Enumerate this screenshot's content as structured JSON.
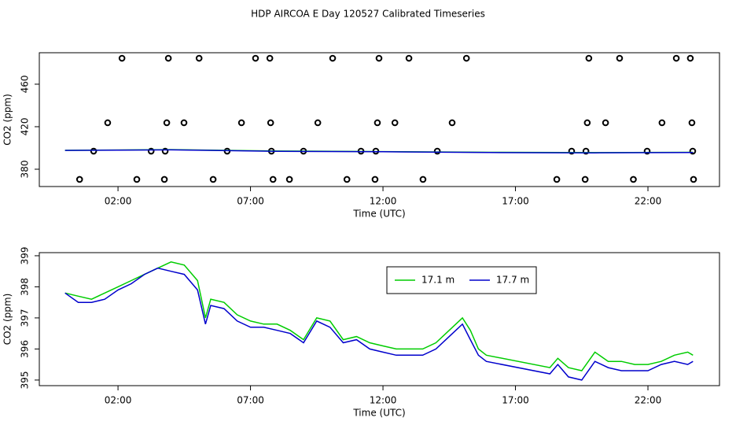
{
  "title": "HDP AIRCOA E  Day 120527  Calibrated Timeseries",
  "chart_data": [
    {
      "type": "scatter",
      "xlabel": "Time (UTC)",
      "ylabel": "CO2 (ppm)",
      "xlim": [
        -0.97,
        24.7
      ],
      "ylim": [
        363.7,
        489.6
      ],
      "xticks": [
        {
          "value": 2,
          "label": "02:00"
        },
        {
          "value": 7,
          "label": "07:00"
        },
        {
          "value": 12,
          "label": "12:00"
        },
        {
          "value": 17,
          "label": "17:00"
        },
        {
          "value": 22,
          "label": "22:00"
        }
      ],
      "yticks": [
        380,
        420,
        460
      ],
      "series": [
        {
          "color": "#000000",
          "mode": "points",
          "x": [
            2.15,
            3.9,
            5.06,
            7.19,
            7.73,
            10.1,
            11.85,
            12.98,
            15.15,
            19.77,
            20.93,
            23.07,
            23.6,
            1.61,
            3.84,
            4.49,
            6.66,
            7.76,
            9.54,
            11.79,
            12.45,
            14.61,
            19.71,
            20.4,
            22.53,
            23.66,
            1.08,
            3.25,
            3.78,
            6.12,
            7.79,
            9.0,
            11.17,
            11.73,
            14.05,
            19.12,
            19.66,
            21.97,
            23.69,
            0.55,
            2.71,
            3.75,
            5.59,
            7.85,
            8.47,
            10.64,
            11.7,
            13.51,
            18.56,
            19.63,
            21.45,
            23.72
          ],
          "values": [
            484.4,
            484.4,
            484.4,
            484.4,
            484.4,
            484.4,
            484.4,
            484.4,
            484.4,
            484.4,
            484.4,
            484.4,
            484.4,
            423.7,
            423.7,
            423.7,
            423.7,
            423.7,
            423.7,
            423.7,
            423.7,
            423.7,
            423.7,
            423.7,
            423.7,
            423.7,
            397,
            397,
            397,
            397,
            397,
            397,
            397,
            397,
            397,
            397,
            397,
            397,
            397,
            370.4,
            370.4,
            370.4,
            370.4,
            370.4,
            370.4,
            370.4,
            370.4,
            370.4,
            370.4,
            370.4,
            370.4,
            370.4
          ]
        },
        {
          "color": "#00cc00",
          "mode": "line",
          "x": [
            0,
            4,
            8,
            12,
            16,
            20,
            23.7
          ],
          "values": [
            397.8,
            398.4,
            397.1,
            396.6,
            395.9,
            395.6,
            395.9
          ]
        },
        {
          "color": "#0000cc",
          "mode": "line",
          "x": [
            0,
            4,
            8,
            12,
            16,
            20,
            23.7
          ],
          "values": [
            397.7,
            398.2,
            396.9,
            396.4,
            395.7,
            395.4,
            395.7
          ]
        }
      ]
    },
    {
      "type": "line",
      "xlabel": "Time (UTC)",
      "ylabel": "CO2 (ppm)",
      "legend": "top",
      "xlim": [
        -0.97,
        24.7
      ],
      "ylim": [
        394.82,
        399.1
      ],
      "xticks": [
        {
          "value": 2,
          "label": "02:00"
        },
        {
          "value": 7,
          "label": "07:00"
        },
        {
          "value": 12,
          "label": "12:00"
        },
        {
          "value": 17,
          "label": "17:00"
        },
        {
          "value": 22,
          "label": "22:00"
        }
      ],
      "yticks": [
        395,
        396,
        397,
        398,
        399
      ],
      "series": [
        {
          "name": "17.1 m",
          "color": "#00cc00",
          "mode": "line",
          "x": [
            0,
            0.5,
            1,
            1.5,
            2,
            2.5,
            3,
            3.5,
            4,
            4.5,
            5,
            5.3,
            5.5,
            6,
            6.5,
            7,
            7.5,
            8,
            8.5,
            9,
            9.5,
            10,
            10.5,
            11,
            11.5,
            12,
            12.5,
            13,
            13.5,
            14,
            14.5,
            15,
            15.3,
            15.6,
            15.9,
            18.3,
            18.6,
            19,
            19.5,
            20,
            20.5,
            21,
            21.5,
            22,
            22.5,
            23,
            23.5,
            23.7
          ],
          "values": [
            397.8,
            397.7,
            397.6,
            397.8,
            398.0,
            398.2,
            398.4,
            398.6,
            398.8,
            398.7,
            398.2,
            397.0,
            397.6,
            397.5,
            397.1,
            396.9,
            396.8,
            396.8,
            396.6,
            396.3,
            397.0,
            396.9,
            396.3,
            396.4,
            396.2,
            396.1,
            396.0,
            396.0,
            396.0,
            396.2,
            396.6,
            397.0,
            396.6,
            396.0,
            395.8,
            395.4,
            395.7,
            395.4,
            395.3,
            395.9,
            395.6,
            395.6,
            395.5,
            395.5,
            395.6,
            395.8,
            395.9,
            395.8
          ]
        },
        {
          "name": "17.7 m",
          "color": "#0000cc",
          "mode": "line",
          "x": [
            0,
            0.5,
            1,
            1.5,
            2,
            2.5,
            3,
            3.5,
            4,
            4.5,
            5,
            5.3,
            5.5,
            6,
            6.5,
            7,
            7.5,
            8,
            8.5,
            9,
            9.5,
            10,
            10.5,
            11,
            11.5,
            12,
            12.5,
            13,
            13.5,
            14,
            14.5,
            15,
            15.3,
            15.6,
            15.9,
            18.3,
            18.6,
            19,
            19.5,
            20,
            20.5,
            21,
            21.5,
            22,
            22.5,
            23,
            23.5,
            23.7
          ],
          "values": [
            397.8,
            397.5,
            397.5,
            397.6,
            397.9,
            398.1,
            398.4,
            398.6,
            398.5,
            398.4,
            397.9,
            396.8,
            397.4,
            397.3,
            396.9,
            396.7,
            396.7,
            396.6,
            396.5,
            396.2,
            396.9,
            396.7,
            396.2,
            396.3,
            396.0,
            395.9,
            395.8,
            395.8,
            395.8,
            396.0,
            396.4,
            396.8,
            396.3,
            395.8,
            395.6,
            395.2,
            395.5,
            395.1,
            395.0,
            395.6,
            395.4,
            395.3,
            395.3,
            395.3,
            395.5,
            395.6,
            395.5,
            395.6
          ]
        }
      ]
    }
  ]
}
